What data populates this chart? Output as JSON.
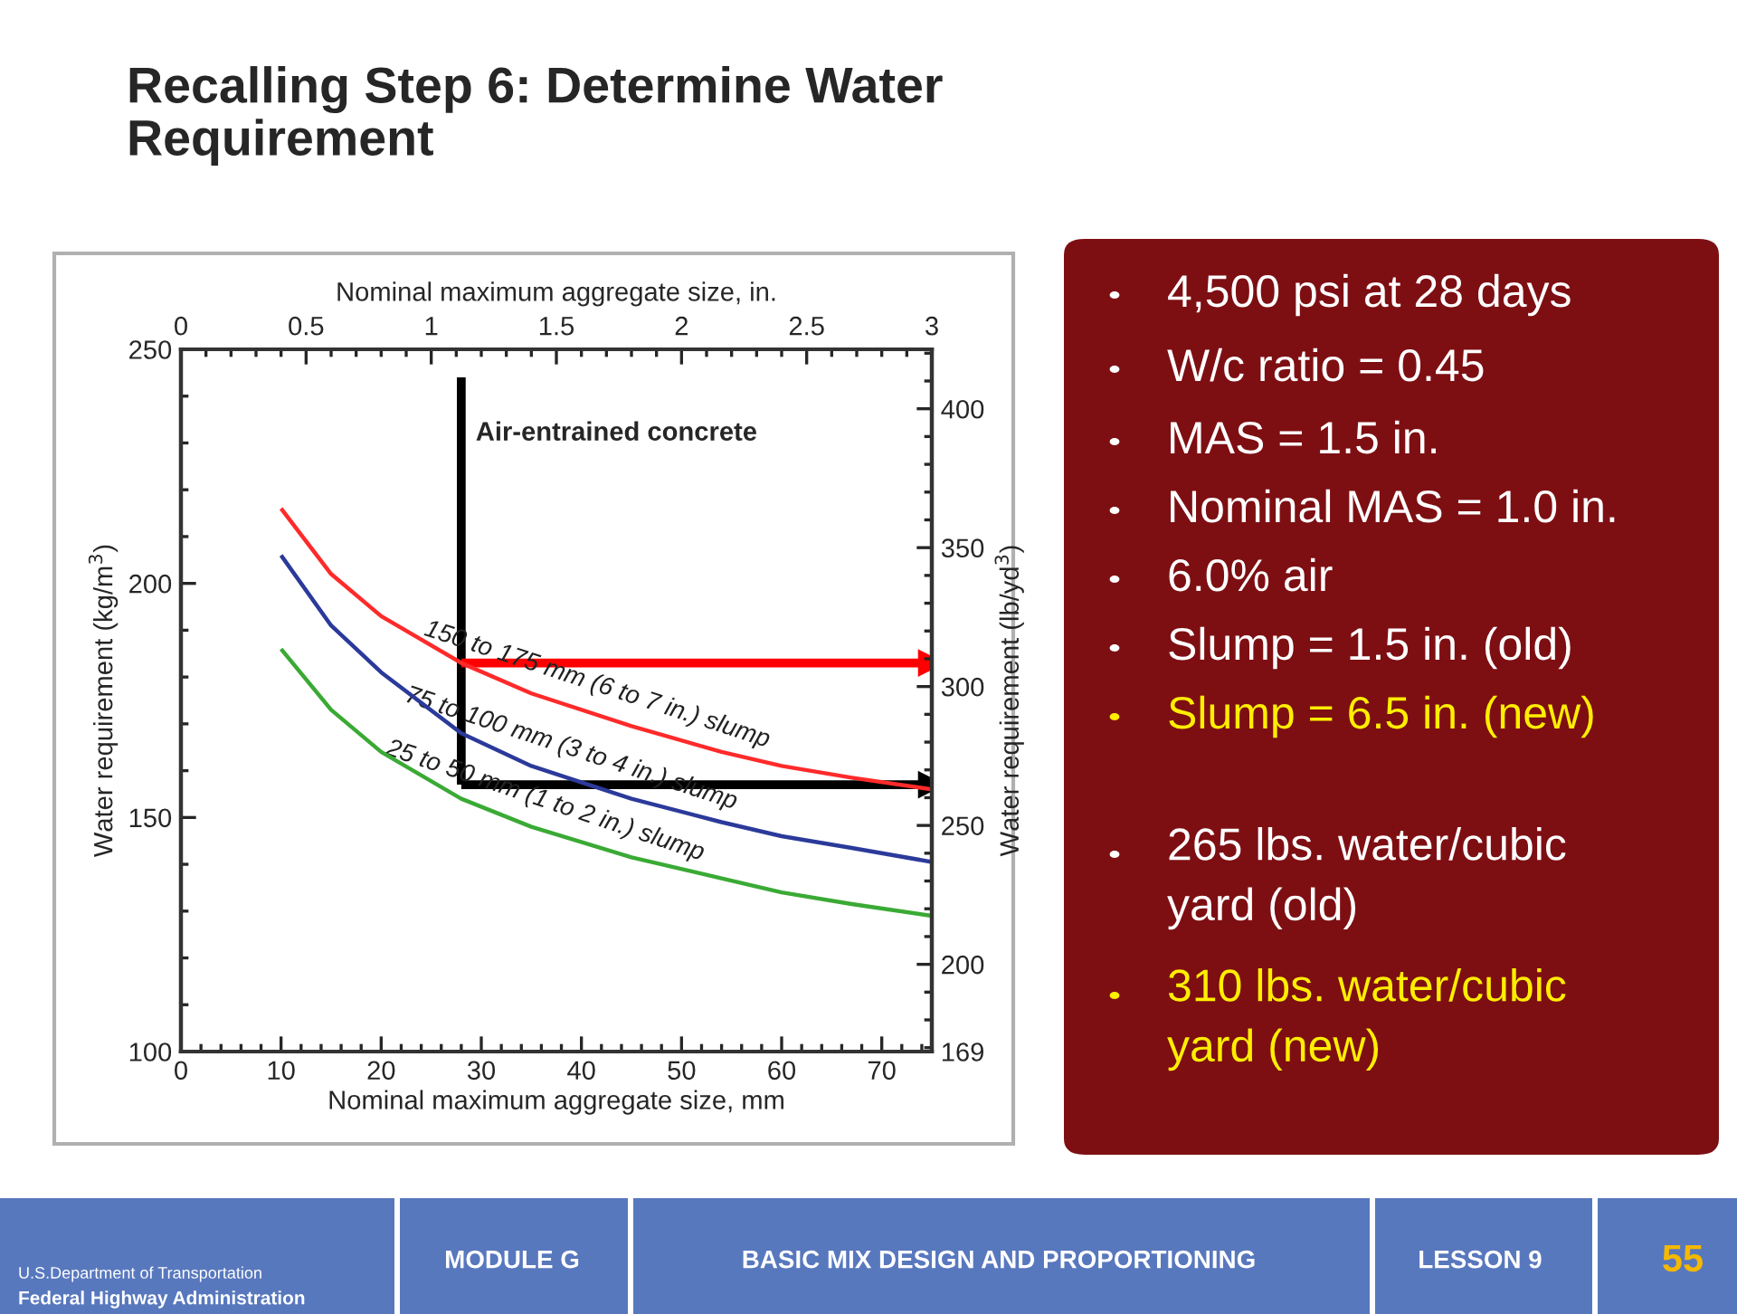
{
  "chart_data": {
    "type": "line",
    "title": "Recalling Step 6: Determine Water\nRequirement",
    "xlabel": "Nominal maximum aggregate size, mm",
    "ylabel": "Water requirement (kg/m$^{3}$)",
    "y2label": "Water requirement (lb/yd$^{3}$)",
    "x2label": "Nominal maximum aggregate size, in.",
    "xlim": [
      0,
      75
    ],
    "xticks": [
      0,
      10,
      20,
      30,
      40,
      50,
      60,
      70
    ],
    "ylim": [
      100,
      250
    ],
    "yticks": [
      100,
      150,
      200,
      250
    ],
    "x2lim": [
      0,
      3
    ],
    "x2ticks": [
      0,
      0.5,
      1,
      1.5,
      2,
      2.5,
      3
    ],
    "y2lim": [
      168.6,
      421.4
    ],
    "y2ticks": [
      {
        "value": 168.6,
        "label": "169"
      },
      200,
      250,
      300,
      350,
      400
    ],
    "grid": false,
    "legend": false,
    "series": [
      {
        "name": "150 to 175 mm (6 to 7 in.) slump",
        "color": "#ff2a2a",
        "x": [
          10,
          15,
          20,
          28,
          35,
          45,
          54,
          60,
          67,
          75
        ],
        "values": [
          216,
          202,
          193,
          183,
          176.5,
          169.5,
          164,
          161,
          158.5,
          156
        ]
      },
      {
        "name": "75 to 100 mm (3 to 4 in.) slump",
        "color": "#2b3a9a",
        "x": [
          10,
          15,
          20,
          28,
          35,
          45,
          54,
          60,
          67,
          75
        ],
        "values": [
          206,
          191,
          181,
          168,
          161,
          154,
          149,
          146,
          143.5,
          140.5
        ]
      },
      {
        "name": "25 to 50 mm (1 to 2 in.) slump",
        "color": "#3aaa35",
        "x": [
          10,
          15,
          20,
          28,
          35,
          45,
          54,
          60,
          67,
          75
        ],
        "values": [
          186,
          173,
          164,
          154,
          148,
          141.5,
          137,
          134,
          131.5,
          129
        ]
      },
      {
        "color": "#000000",
        "x": [
          28,
          28
        ],
        "values": [
          244,
          157
        ],
        "marker": "none"
      },
      {
        "color": "#000000",
        "x": [
          28,
          75
        ],
        "values": [
          157,
          157
        ],
        "marker": "triangle"
      },
      {
        "color": "#ff0000",
        "x": [
          28,
          75
        ],
        "values": [
          183,
          183
        ],
        "marker": "triangle"
      }
    ],
    "annotations": [
      "4,500 psi at 28 days",
      "W/c ratio = 0.45",
      "MAS = 1.5 in.",
      "Nominal MAS = 1.0 in.",
      "6.0% air",
      "Slump = 1.5 in. (old)",
      "Slump = 6.5 in. (new)",
      "265 lbs. water/cubic\nyard (old)",
      "310 lbs. water/cubic\nyard (new)",
      "Air-entrained concrete",
      "U.S.Department of Transportation",
      "Federal Highway Administration",
      "MODULE G",
      "BASIC MIX DESIGN AND PROPORTIONING",
      "LESSON 9",
      "55"
    ]
  }
}
